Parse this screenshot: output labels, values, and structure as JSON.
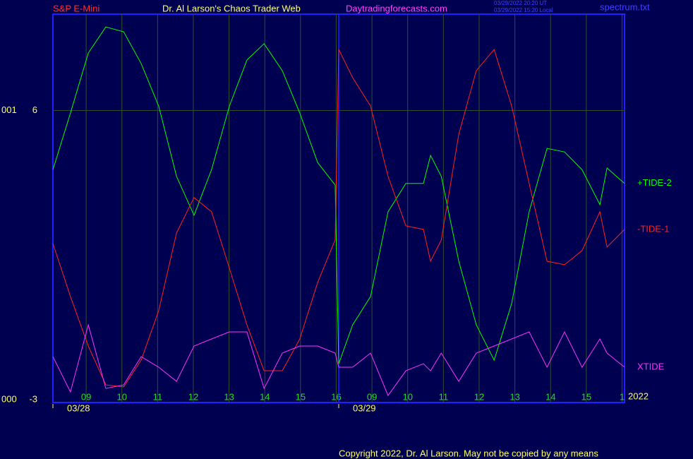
{
  "chart_data": {
    "type": "line",
    "header": {
      "symbol": "S&P E-Mini",
      "author": "Dr. Al Larson's Chaos Trader Web",
      "site": "Daytradingforecasts.com",
      "time_ut": "03/29/2022 20:20 UT",
      "time_local": "03/29/2022 15:20 Local",
      "file": "spectrum.txt"
    },
    "footer": "Copyright 2022, Dr. Al Larson. May not be copied by any means",
    "year": "2022",
    "ylim": [
      -3,
      9
    ],
    "yticks": [
      6,
      -3
    ],
    "y_side_labels": [
      "001",
      "000"
    ],
    "xlim": [
      0.07,
      16.07
    ],
    "xticks": [
      {
        "value": 1,
        "label": "09"
      },
      {
        "value": 2,
        "label": "10"
      },
      {
        "value": 3,
        "label": "11"
      },
      {
        "value": 4,
        "label": "12"
      },
      {
        "value": 5,
        "label": "13"
      },
      {
        "value": 6,
        "label": "14"
      },
      {
        "value": 7,
        "label": "15"
      },
      {
        "value": 8,
        "label": "16"
      },
      {
        "value": 9,
        "label": "09"
      },
      {
        "value": 10,
        "label": "10"
      },
      {
        "value": 11,
        "label": "11"
      },
      {
        "value": 12,
        "label": "12"
      },
      {
        "value": 13,
        "label": "13"
      },
      {
        "value": 14,
        "label": "14"
      },
      {
        "value": 15,
        "label": "15"
      },
      {
        "value": 16,
        "label": "1"
      }
    ],
    "dates": [
      {
        "value": 0.07,
        "label": "03/28"
      },
      {
        "value": 8.07,
        "label": "03/29"
      }
    ],
    "grid": true,
    "x": [
      0.07,
      0.56,
      1.06,
      1.55,
      2.05,
      2.54,
      3.03,
      3.53,
      4.02,
      4.51,
      5.01,
      5.5,
      5.98,
      6.49,
      6.98,
      7.48,
      7.97,
      8.07,
      8.46,
      8.96,
      9.45,
      9.95,
      10.44,
      10.64,
      10.94,
      11.43,
      11.92,
      12.42,
      12.91,
      13.4,
      13.9,
      14.39,
      14.88,
      15.38,
      15.58,
      16.07
    ],
    "series": [
      {
        "name": "+TIDE-2",
        "color": "#00ff00",
        "values": [
          4.16,
          5.92,
          7.79,
          8.6,
          8.45,
          7.46,
          6.14,
          3.95,
          2.74,
          4.16,
          6.14,
          7.57,
          8.08,
          7.24,
          5.92,
          4.38,
          3.68,
          -1.88,
          -0.67,
          0.21,
          2.85,
          3.73,
          3.73,
          4.6,
          3.95,
          1.31,
          -0.67,
          -1.77,
          -0.01,
          2.85,
          4.82,
          4.71,
          4.16,
          3.07,
          4.21,
          3.73
        ]
      },
      {
        "name": "-TIDE-1",
        "color": "#ff2020",
        "values": [
          1.86,
          0.21,
          -1.33,
          -2.54,
          -2.6,
          -1.77,
          -0.23,
          2.19,
          3.29,
          2.85,
          1.09,
          -0.67,
          -2.1,
          -2.1,
          -1.11,
          0.65,
          1.97,
          7.9,
          7.02,
          6.14,
          3.95,
          2.41,
          2.3,
          1.31,
          1.97,
          5.26,
          7.24,
          7.9,
          6.14,
          3.73,
          1.31,
          1.2,
          1.64,
          2.85,
          1.75,
          2.3
        ]
      },
      {
        "name": "XTIDE",
        "color": "#ff30ff",
        "values": [
          -1.66,
          -2.76,
          -0.67,
          -2.65,
          -2.54,
          -1.66,
          -1.99,
          -2.43,
          -1.33,
          -1.11,
          -0.89,
          -0.89,
          -2.65,
          -1.55,
          -1.33,
          -1.33,
          -1.55,
          -1.99,
          -1.99,
          -1.55,
          -2.87,
          -2.1,
          -1.88,
          -2.1,
          -1.55,
          -2.43,
          -1.55,
          -1.33,
          -1.11,
          -0.89,
          -1.99,
          -0.89,
          -1.99,
          -1.11,
          -1.55,
          -1.99
        ]
      }
    ]
  }
}
